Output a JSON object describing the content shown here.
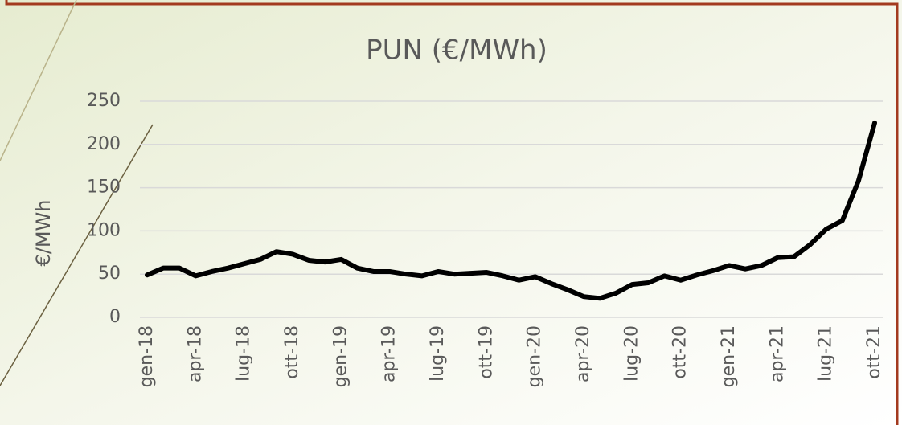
{
  "chart_data": {
    "type": "line",
    "title": "PUN (€/MWh)",
    "y_label": "€/MWh",
    "categories": [
      "gen-18",
      null,
      null,
      "apr-18",
      null,
      null,
      "lug-18",
      null,
      null,
      "ott-18",
      null,
      null,
      "gen-19",
      null,
      null,
      "apr-19",
      null,
      null,
      "lug-19",
      null,
      null,
      "ott-19",
      null,
      null,
      "gen-20",
      null,
      null,
      "apr-20",
      null,
      null,
      "lug-20",
      null,
      null,
      "ott-20",
      null,
      null,
      "gen-21",
      null,
      null,
      "apr-21",
      null,
      null,
      "lug-21",
      null,
      null,
      "ott-21"
    ],
    "values": [
      49,
      57,
      57,
      48,
      53,
      57,
      62,
      67,
      76,
      73,
      66,
      64,
      67,
      57,
      53,
      53,
      50,
      48,
      53,
      50,
      51,
      52,
      48,
      43,
      47,
      39,
      32,
      24,
      22,
      28,
      38,
      40,
      48,
      43,
      49,
      54,
      60,
      56,
      60,
      69,
      70,
      84,
      102,
      112,
      158,
      225
    ],
    "color": "#000000",
    "ylim": [
      0,
      250
    ],
    "yticks": [
      0,
      50,
      100,
      150,
      200,
      250
    ],
    "grid": true
  }
}
